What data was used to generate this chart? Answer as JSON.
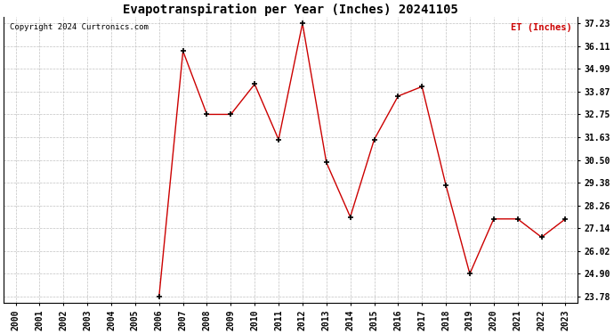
{
  "title": "Evapotranspiration per Year (Inches) 20241105",
  "copyright": "Copyright 2024 Curtronics.com",
  "legend_label": "ET (Inches)",
  "years": [
    2000,
    2001,
    2002,
    2003,
    2004,
    2005,
    2006,
    2007,
    2008,
    2009,
    2010,
    2011,
    2012,
    2013,
    2014,
    2015,
    2016,
    2017,
    2018,
    2019,
    2020,
    2021,
    2022,
    2023
  ],
  "values": [
    null,
    null,
    null,
    null,
    null,
    null,
    23.78,
    35.87,
    32.75,
    32.75,
    34.24,
    31.51,
    37.23,
    30.38,
    27.7,
    31.51,
    33.65,
    34.12,
    29.26,
    24.9,
    27.6,
    27.6,
    26.7,
    27.6
  ],
  "line_color": "#cc0000",
  "marker": "+",
  "marker_color": "#000000",
  "ylim_min": 23.78,
  "ylim_max": 37.23,
  "yticks": [
    37.23,
    36.11,
    34.99,
    33.87,
    32.75,
    31.63,
    30.5,
    29.38,
    28.26,
    27.14,
    26.02,
    24.9,
    23.78
  ],
  "background_color": "#ffffff",
  "grid_color": "#bbbbbb",
  "title_fontsize": 10,
  "tick_fontsize": 7,
  "legend_color": "#cc0000"
}
